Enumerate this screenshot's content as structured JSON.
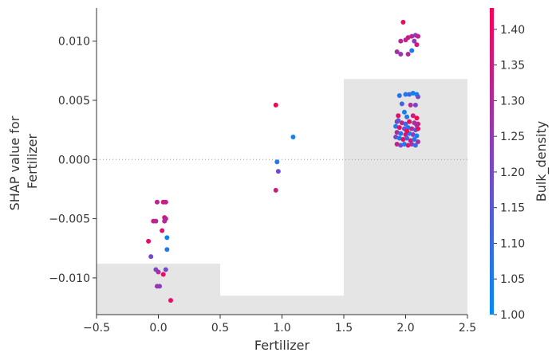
{
  "chart_data": {
    "type": "scatter",
    "xlabel": "Fertilizer",
    "ylabel_lines": [
      "SHAP value for",
      "Fertilizer"
    ],
    "xlim": [
      -0.5,
      2.5
    ],
    "ylim": [
      -0.0131,
      0.0128
    ],
    "x_ticks": [
      -0.5,
      0.0,
      0.5,
      1.0,
      1.5,
      2.0,
      2.5
    ],
    "x_tick_labels": [
      "−0.5",
      "0.0",
      "0.5",
      "1.0",
      "1.5",
      "2.0",
      "2.5"
    ],
    "y_ticks": [
      0.01,
      0.005,
      0.0,
      -0.005,
      -0.01
    ],
    "y_tick_labels": [
      "0.010",
      "0.005",
      "0.000",
      "−0.005",
      "−0.010"
    ],
    "zero_line": true,
    "background_histogram": [
      {
        "x0": -0.5,
        "x1": 0.5,
        "height": 0.0043
      },
      {
        "x0": 0.5,
        "x1": 1.5,
        "height": 0.0016
      },
      {
        "x0": 1.5,
        "x1": 2.5,
        "height": 0.0199
      }
    ],
    "colorbar": {
      "label": "Bulk_density",
      "range": [
        1.0,
        1.43
      ],
      "ticks": [
        1.0,
        1.05,
        1.1,
        1.15,
        1.2,
        1.25,
        1.3,
        1.35,
        1.4
      ],
      "tick_labels": [
        "1.00",
        "1.05",
        "1.10",
        "1.15",
        "1.20",
        "1.25",
        "1.30",
        "1.35",
        "1.40"
      ],
      "cmap": [
        "#008afb",
        "#7d45c8",
        "#ff0052"
      ]
    },
    "points": [
      [
        -0.08,
        -0.0069,
        1.4
      ],
      [
        -0.06,
        -0.0082,
        1.2
      ],
      [
        -0.04,
        -0.0052,
        1.33
      ],
      [
        -0.02,
        -0.0052,
        1.3
      ],
      [
        -0.01,
        -0.0036,
        1.32
      ],
      [
        -0.02,
        -0.0093,
        1.22
      ],
      [
        0.0,
        -0.0095,
        1.28
      ],
      [
        0.01,
        -0.0107,
        1.23
      ],
      [
        -0.01,
        -0.0107,
        1.26
      ],
      [
        0.03,
        -0.006,
        1.38
      ],
      [
        0.04,
        -0.0036,
        1.35
      ],
      [
        0.06,
        -0.0036,
        1.33
      ],
      [
        0.05,
        -0.0049,
        1.36
      ],
      [
        0.06,
        -0.005,
        1.32
      ],
      [
        0.05,
        -0.0052,
        1.3
      ],
      [
        0.07,
        -0.0066,
        1.02
      ],
      [
        0.07,
        -0.0076,
        1.05
      ],
      [
        0.06,
        -0.0093,
        1.2
      ],
      [
        0.04,
        -0.0097,
        1.4
      ],
      [
        0.1,
        -0.0119,
        1.4
      ],
      [
        0.95,
        0.0046,
        1.42
      ],
      [
        1.09,
        0.0019,
        1.02
      ],
      [
        0.96,
        -0.0002,
        1.06
      ],
      [
        0.97,
        -0.001,
        1.2
      ],
      [
        0.95,
        -0.0026,
        1.35
      ],
      [
        1.98,
        0.0116,
        1.4
      ],
      [
        2.02,
        0.0103,
        1.35
      ],
      [
        2.05,
        0.0104,
        1.3
      ],
      [
        2.08,
        0.0105,
        1.25
      ],
      [
        2.1,
        0.0104,
        1.32
      ],
      [
        1.96,
        0.01,
        1.3
      ],
      [
        2.0,
        0.0101,
        1.33
      ],
      [
        2.07,
        0.01,
        1.25
      ],
      [
        2.09,
        0.0097,
        1.35
      ],
      [
        1.93,
        0.0091,
        1.28
      ],
      [
        1.96,
        0.0089,
        1.26
      ],
      [
        2.02,
        0.0089,
        1.3
      ],
      [
        2.05,
        0.0092,
        1.05
      ],
      [
        1.95,
        0.0054,
        1.08
      ],
      [
        2.0,
        0.0055,
        1.05
      ],
      [
        2.03,
        0.0055,
        1.1
      ],
      [
        2.06,
        0.0056,
        1.04
      ],
      [
        2.09,
        0.0055,
        1.02
      ],
      [
        2.1,
        0.0053,
        1.2
      ],
      [
        1.97,
        0.0047,
        1.12
      ],
      [
        2.04,
        0.0046,
        1.3
      ],
      [
        2.08,
        0.0046,
        1.22
      ],
      [
        1.99,
        0.004,
        1.04
      ],
      [
        1.94,
        0.0037,
        1.38
      ],
      [
        2.01,
        0.0036,
        1.06
      ],
      [
        2.06,
        0.0037,
        1.35
      ],
      [
        2.09,
        0.0035,
        1.42
      ],
      [
        1.93,
        0.0032,
        1.25
      ],
      [
        1.97,
        0.0031,
        1.33
      ],
      [
        2.0,
        0.003,
        1.1
      ],
      [
        2.03,
        0.0032,
        1.4
      ],
      [
        2.07,
        0.0031,
        1.28
      ],
      [
        2.1,
        0.003,
        1.36
      ],
      [
        1.92,
        0.0028,
        1.02
      ],
      [
        1.95,
        0.0027,
        1.38
      ],
      [
        1.99,
        0.0026,
        1.2
      ],
      [
        2.02,
        0.0027,
        1.05
      ],
      [
        2.05,
        0.0026,
        1.32
      ],
      [
        2.08,
        0.0025,
        1.15
      ],
      [
        2.1,
        0.0026,
        1.4
      ],
      [
        1.93,
        0.0023,
        1.3
      ],
      [
        1.96,
        0.0022,
        1.08
      ],
      [
        2.0,
        0.0021,
        1.36
      ],
      [
        2.03,
        0.0022,
        1.02
      ],
      [
        2.06,
        0.0021,
        1.25
      ],
      [
        2.09,
        0.002,
        1.05
      ],
      [
        1.92,
        0.0019,
        1.22
      ],
      [
        1.95,
        0.0018,
        1.03
      ],
      [
        1.98,
        0.0017,
        1.4
      ],
      [
        2.01,
        0.0018,
        1.12
      ],
      [
        2.04,
        0.0016,
        1.35
      ],
      [
        2.07,
        0.0017,
        1.06
      ],
      [
        2.1,
        0.0015,
        1.28
      ],
      [
        1.93,
        0.0013,
        1.34
      ],
      [
        1.96,
        0.0012,
        1.18
      ],
      [
        1.99,
        0.0013,
        1.04
      ],
      [
        2.02,
        0.0012,
        1.38
      ],
      [
        2.05,
        0.0013,
        1.26
      ],
      [
        2.08,
        0.0012,
        1.1
      ],
      [
        2.09,
        0.0029,
        1.3
      ],
      [
        1.94,
        0.0033,
        1.15
      ],
      [
        2.01,
        0.0024,
        1.42
      ]
    ]
  }
}
